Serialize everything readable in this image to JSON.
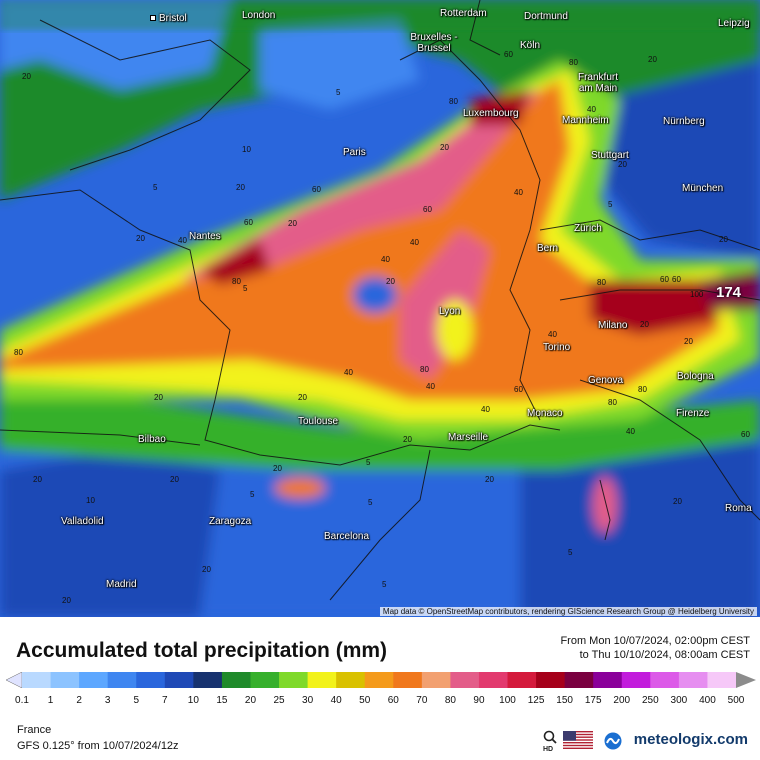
{
  "title": "Accumulated total precipitation (mm)",
  "range": {
    "from": "From Mon 10/07/2024, 02:00pm CEST",
    "to": "to Thu 10/10/2024, 08:00am CEST"
  },
  "region": "France",
  "model": "GFS 0.125° from  10/07/2024/12z",
  "brand": "meteologix.com",
  "attribution": "Map data © OpenStreetMap contributors, rendering GIScience Research Group @ Heidelberg University",
  "max_value": "174",
  "cities": [
    {
      "name": "Bristol"
    },
    {
      "name": "London"
    },
    {
      "name": "Rotterdam"
    },
    {
      "name": "Dortmund"
    },
    {
      "name": "Leipzig"
    },
    {
      "name": "Bruxelles - Brussel"
    },
    {
      "name": "Köln"
    },
    {
      "name": "Frankfurt am Main"
    },
    {
      "name": "Luxembourg"
    },
    {
      "name": "Mannheim"
    },
    {
      "name": "Nürnberg"
    },
    {
      "name": "Paris"
    },
    {
      "name": "Stuttgart"
    },
    {
      "name": "München"
    },
    {
      "name": "Nantes"
    },
    {
      "name": "Zürich"
    },
    {
      "name": "Bern"
    },
    {
      "name": "Milano"
    },
    {
      "name": "Lyon"
    },
    {
      "name": "Torino"
    },
    {
      "name": "Bologna"
    },
    {
      "name": "Genova"
    },
    {
      "name": "Monaco"
    },
    {
      "name": "Firenze"
    },
    {
      "name": "Toulouse"
    },
    {
      "name": "Marseille"
    },
    {
      "name": "Bilbao"
    },
    {
      "name": "Valladolid"
    },
    {
      "name": "Zaragoza"
    },
    {
      "name": "Barcelona"
    },
    {
      "name": "Madrid"
    },
    {
      "name": "Roma"
    }
  ],
  "contour_labels": [
    "20",
    "5",
    "20",
    "5",
    "10",
    "20",
    "40",
    "60",
    "80",
    "5",
    "20",
    "60",
    "40",
    "20",
    "40",
    "80",
    "60",
    "40",
    "20",
    "80",
    "80",
    "60",
    "40",
    "20",
    "40",
    "20",
    "20",
    "20",
    "5",
    "20",
    "20",
    "5",
    "10",
    "20",
    "80",
    "40",
    "20",
    "5",
    "5",
    "20",
    "20",
    "20",
    "5",
    "60",
    "80",
    "20",
    "40",
    "60",
    "80",
    "100",
    "60",
    "40",
    "20",
    "20",
    "20",
    "40",
    "80",
    "60",
    "5"
  ],
  "legend": {
    "ticks": [
      "0.1",
      "1",
      "2",
      "3",
      "5",
      "7",
      "10",
      "15",
      "20",
      "25",
      "30",
      "40",
      "50",
      "60",
      "70",
      "80",
      "90",
      "100",
      "125",
      "150",
      "175",
      "200",
      "250",
      "300",
      "400",
      "500"
    ],
    "colors": [
      "#dfe3ff",
      "#b9d9ff",
      "#8cc3ff",
      "#5da7ff",
      "#3f86f0",
      "#2a66dc",
      "#1f49b6",
      "#17326f",
      "#1f8a2a",
      "#36b02c",
      "#7fd92a",
      "#f2f21b",
      "#d9c100",
      "#f49a1b",
      "#f0781d",
      "#f2a070",
      "#e35d89",
      "#e23a6e",
      "#d41a3c",
      "#a5001a",
      "#7a0040",
      "#8a009a",
      "#c21cdc",
      "#dc5ae8",
      "#e68ef0",
      "#f6c8f8",
      "#d9d9d9"
    ]
  },
  "icons": [
    "zoom-hd-icon",
    "us-flag-icon",
    "meteologix-logo-icon"
  ]
}
